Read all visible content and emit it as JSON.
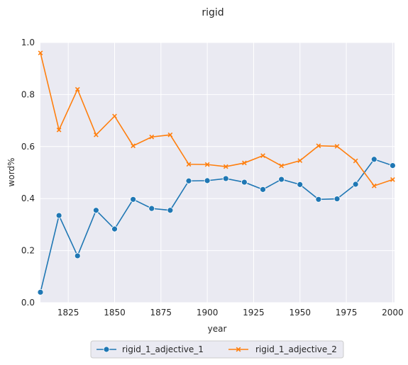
{
  "chart_data": {
    "type": "line",
    "title": "rigid",
    "xlabel": "year",
    "ylabel": "word%",
    "xlim": [
      1810,
      2001
    ],
    "ylim": [
      0.0,
      1.0
    ],
    "xticks": [
      1825,
      1850,
      1875,
      1900,
      1925,
      1950,
      1975,
      2000
    ],
    "yticks": [
      0.0,
      0.2,
      0.4,
      0.6,
      0.8,
      1.0
    ],
    "xtick_labels": [
      "1825",
      "1850",
      "1875",
      "1900",
      "1925",
      "1950",
      "1975",
      "2000"
    ],
    "ytick_labels": [
      "0.0",
      "0.2",
      "0.4",
      "0.6",
      "0.8",
      "1.0"
    ],
    "grid": true,
    "background": "#eaeaf2",
    "legend_position": "bottom-center",
    "x": [
      1810,
      1820,
      1830,
      1840,
      1850,
      1860,
      1870,
      1880,
      1890,
      1900,
      1910,
      1920,
      1930,
      1940,
      1950,
      1960,
      1970,
      1980,
      1990,
      2000
    ],
    "series": [
      {
        "name": "rigid_1_adjective_1",
        "color": "#1f77b4",
        "marker": "circle",
        "values": [
          0.04,
          0.335,
          0.18,
          0.355,
          0.283,
          0.397,
          0.362,
          0.355,
          0.468,
          0.469,
          0.477,
          0.463,
          0.435,
          0.474,
          0.454,
          0.397,
          0.399,
          0.455,
          0.551,
          0.527
        ]
      },
      {
        "name": "rigid_1_adjective_2",
        "color": "#ff7f0e",
        "marker": "x",
        "values": [
          0.96,
          0.664,
          0.82,
          0.645,
          0.717,
          0.603,
          0.637,
          0.645,
          0.532,
          0.531,
          0.523,
          0.537,
          0.565,
          0.526,
          0.546,
          0.603,
          0.601,
          0.545,
          0.449,
          0.473
        ]
      }
    ]
  }
}
